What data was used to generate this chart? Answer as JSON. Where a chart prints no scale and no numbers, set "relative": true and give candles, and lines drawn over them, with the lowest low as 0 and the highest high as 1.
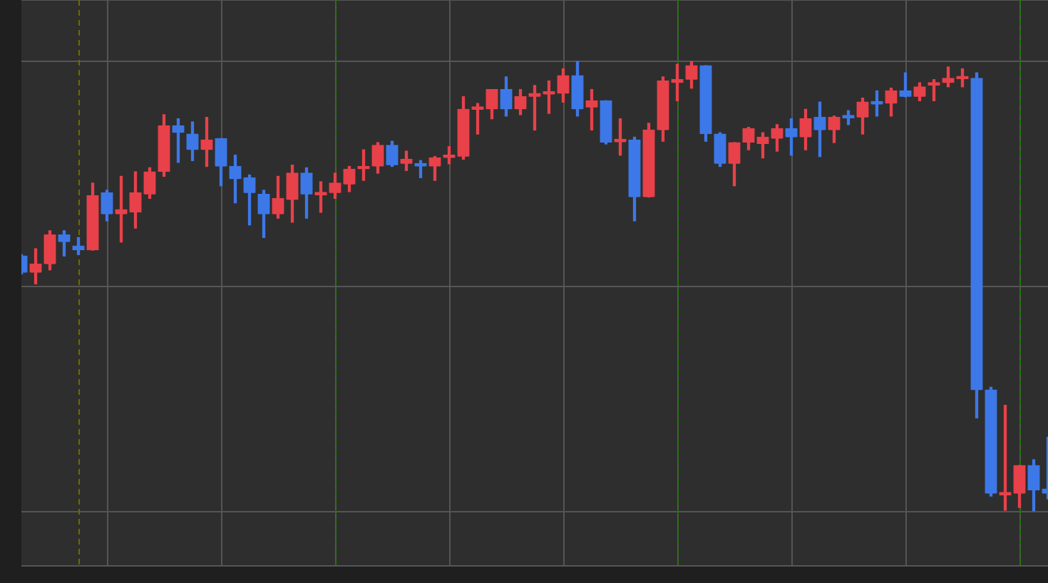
{
  "chart_data": {
    "type": "candlestick",
    "relative": true,
    "grid": true,
    "tick_labels": false,
    "categories": [
      null,
      null,
      null,
      null,
      null,
      null,
      null,
      null,
      null,
      null,
      null,
      null,
      null,
      null,
      null,
      null,
      null,
      null,
      null,
      null,
      null,
      null,
      null,
      null,
      null,
      null,
      null,
      null,
      null,
      null,
      null,
      null,
      null,
      null,
      null,
      null,
      null,
      null,
      null,
      null,
      null,
      null,
      null,
      null,
      null,
      null,
      null,
      null,
      null,
      null,
      null,
      null,
      null,
      null,
      null,
      null,
      null,
      null,
      null,
      null,
      null,
      null,
      null,
      null,
      null,
      null,
      null,
      null,
      null,
      null,
      null,
      null,
      null
    ],
    "ohlc": [
      [
        0.568,
        0.571,
        0.528,
        0.531
      ],
      [
        0.531,
        0.584,
        0.506,
        0.55
      ],
      [
        0.55,
        0.624,
        0.537,
        0.615
      ],
      [
        0.615,
        0.624,
        0.568,
        0.599
      ],
      [
        0.59,
        0.609,
        0.571,
        0.581
      ],
      [
        0.581,
        0.73,
        0.581,
        0.702
      ],
      [
        0.708,
        0.714,
        0.646,
        0.661
      ],
      [
        0.661,
        0.745,
        0.599,
        0.671
      ],
      [
        0.665,
        0.755,
        0.63,
        0.708
      ],
      [
        0.705,
        0.764,
        0.696,
        0.755
      ],
      [
        0.755,
        0.882,
        0.745,
        0.857
      ],
      [
        0.857,
        0.873,
        0.776,
        0.842
      ],
      [
        0.839,
        0.866,
        0.78,
        0.804
      ],
      [
        0.804,
        0.876,
        0.767,
        0.826
      ],
      [
        0.829,
        0.829,
        0.724,
        0.767
      ],
      [
        0.767,
        0.792,
        0.686,
        0.739
      ],
      [
        0.742,
        0.748,
        0.637,
        0.708
      ],
      [
        0.705,
        0.714,
        0.609,
        0.661
      ],
      [
        0.661,
        0.745,
        0.652,
        0.696
      ],
      [
        0.693,
        0.77,
        0.643,
        0.752
      ],
      [
        0.752,
        0.764,
        0.652,
        0.705
      ],
      [
        0.703,
        0.733,
        0.665,
        0.707
      ],
      [
        0.708,
        0.752,
        0.696,
        0.73
      ],
      [
        0.727,
        0.767,
        0.711,
        0.761
      ],
      [
        0.761,
        0.804,
        0.736,
        0.767
      ],
      [
        0.767,
        0.82,
        0.752,
        0.814
      ],
      [
        0.814,
        0.823,
        0.767,
        0.77
      ],
      [
        0.773,
        0.801,
        0.758,
        0.783
      ],
      [
        0.773,
        0.78,
        0.742,
        0.767
      ],
      [
        0.767,
        0.789,
        0.736,
        0.786
      ],
      [
        0.786,
        0.811,
        0.773,
        0.792
      ],
      [
        0.789,
        0.922,
        0.783,
        0.894
      ],
      [
        0.893,
        0.907,
        0.839,
        0.896
      ],
      [
        0.894,
        0.938,
        0.873,
        0.938
      ],
      [
        0.938,
        0.966,
        0.879,
        0.894
      ],
      [
        0.894,
        0.938,
        0.882,
        0.922
      ],
      [
        0.922,
        0.947,
        0.848,
        0.929
      ],
      [
        0.927,
        0.957,
        0.885,
        0.93
      ],
      [
        0.929,
        0.984,
        0.91,
        0.969
      ],
      [
        0.969,
        1,
        0.879,
        0.894
      ],
      [
        0.898,
        0.938,
        0.848,
        0.913
      ],
      [
        0.913,
        0.913,
        0.817,
        0.82
      ],
      [
        0.821,
        0.873,
        0.792,
        0.825
      ],
      [
        0.826,
        0.832,
        0.646,
        0.699
      ],
      [
        0.699,
        0.863,
        0.699,
        0.848
      ],
      [
        0.848,
        0.966,
        0.823,
        0.957
      ],
      [
        0.953,
        0.994,
        0.913,
        0.96
      ],
      [
        0.96,
        1,
        0.941,
        0.991
      ],
      [
        0.991,
        0.991,
        0.823,
        0.839
      ],
      [
        0.839,
        0.842,
        0.767,
        0.773
      ],
      [
        0.773,
        0.82,
        0.724,
        0.82
      ],
      [
        0.82,
        0.854,
        0.804,
        0.851
      ],
      [
        0.817,
        0.842,
        0.786,
        0.832
      ],
      [
        0.829,
        0.86,
        0.801,
        0.851
      ],
      [
        0.851,
        0.873,
        0.792,
        0.832
      ],
      [
        0.832,
        0.894,
        0.804,
        0.873
      ],
      [
        0.876,
        0.91,
        0.789,
        0.848
      ],
      [
        0.848,
        0.879,
        0.82,
        0.876
      ],
      [
        0.877,
        0.891,
        0.86,
        0.874
      ],
      [
        0.876,
        0.919,
        0.839,
        0.91
      ],
      [
        0.908,
        0.935,
        0.879,
        0.905
      ],
      [
        0.907,
        0.941,
        0.879,
        0.935
      ],
      [
        0.935,
        0.975,
        0.922,
        0.922
      ],
      [
        0.922,
        0.953,
        0.913,
        0.944
      ],
      [
        0.947,
        0.96,
        0.913,
        0.953
      ],
      [
        0.953,
        0.988,
        0.944,
        0.963
      ],
      [
        0.961,
        0.984,
        0.944,
        0.964
      ],
      [
        0.963,
        0.975,
        0.208,
        0.27
      ],
      [
        0.27,
        0.276,
        0.034,
        0.04
      ],
      [
        0.036,
        0.236,
        0.003,
        0.039
      ],
      [
        0.04,
        0.102,
        0.009,
        0.102
      ],
      [
        0.102,
        0.115,
        0,
        0.047
      ],
      [
        0.05,
        0.165,
        0.028,
        0.04
      ]
    ],
    "colors": [
      "#3d78e8",
      "#e8414a",
      "#e8414a",
      "#3d78e8",
      "#3d78e8",
      "#e8414a",
      "#3d78e8",
      "#e8414a",
      "#e8414a",
      "#e8414a",
      "#e8414a",
      "#3d78e8",
      "#3d78e8",
      "#e8414a",
      "#3d78e8",
      "#3d78e8",
      "#3d78e8",
      "#3d78e8",
      "#e8414a",
      "#e8414a",
      "#3d78e8",
      "#e8414a",
      "#e8414a",
      "#e8414a",
      "#e8414a",
      "#e8414a",
      "#3d78e8",
      "#e8414a",
      "#3d78e8",
      "#e8414a",
      "#e8414a",
      "#e8414a",
      "#e8414a",
      "#e8414a",
      "#3d78e8",
      "#e8414a",
      "#e8414a",
      "#e8414a",
      "#e8414a",
      "#3d78e8",
      "#e8414a",
      "#3d78e8",
      "#e8414a",
      "#3d78e8",
      "#e8414a",
      "#e8414a",
      "#e8414a",
      "#e8414a",
      "#3d78e8",
      "#3d78e8",
      "#e8414a",
      "#e8414a",
      "#e8414a",
      "#e8414a",
      "#3d78e8",
      "#e8414a",
      "#3d78e8",
      "#e8414a",
      "#3d78e8",
      "#e8414a",
      "#3d78e8",
      "#e8414a",
      "#3d78e8",
      "#e8414a",
      "#e8414a",
      "#e8414a",
      "#e8414a",
      "#3d78e8",
      "#3d78e8",
      "#e8414a",
      "#e8414a",
      "#3d78e8",
      "#3d78e8"
    ]
  }
}
